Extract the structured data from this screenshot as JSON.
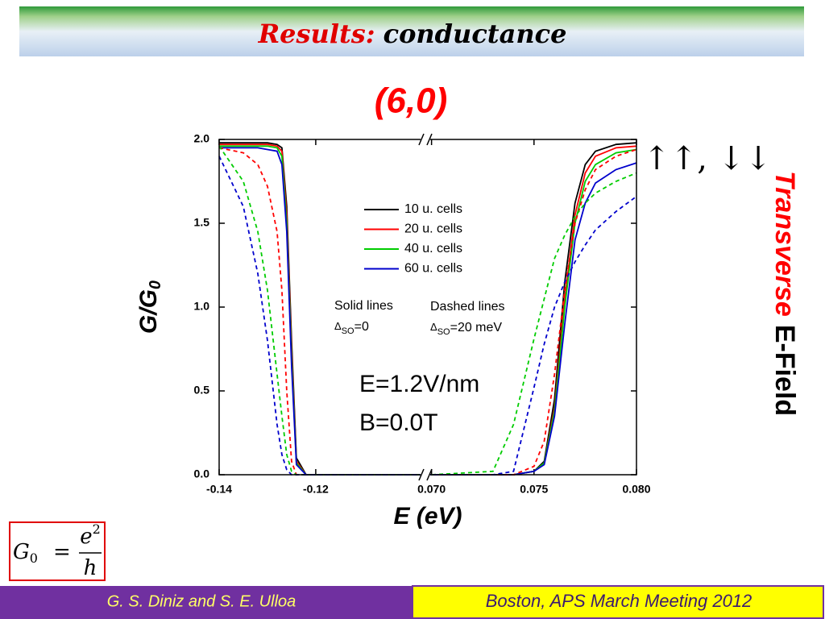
{
  "header": {
    "title_part1": "Results:",
    "title_part2": "conductance"
  },
  "subtitle": "(6,0)",
  "side": {
    "arrows": "↑↑, ↓↓",
    "word1": "Transverse",
    "word2": "E-Field"
  },
  "formula": {
    "lhs": "G",
    "lhs_sub": "0",
    "eq": "=",
    "num": "e",
    "num_sup": "2",
    "den": "h"
  },
  "footer": {
    "authors": "G. S. Diniz and S. E. Ulloa",
    "venue": "Boston, APS March Meeting 2012"
  },
  "chart_data": {
    "type": "line",
    "xlabel": "E (eV)",
    "ylabel": "G/G",
    "ylabel_sub": "0",
    "xlim": [
      -0.14,
      0.08
    ],
    "xbreak": [
      -0.0973,
      0.0697
    ],
    "xticks": [
      -0.14,
      -0.12,
      {
        "value": 0.07,
        "label": "0.070"
      },
      {
        "value": 0.075,
        "label": "0.075"
      },
      {
        "value": 0.08,
        "label": "0.080"
      }
    ],
    "ylim": [
      0,
      2.0
    ],
    "yticks": [
      {
        "value": 0,
        "label": "0.0"
      },
      0.5,
      {
        "value": 1,
        "label": "1.0"
      },
      1.5,
      {
        "value": 2,
        "label": "2.0"
      }
    ],
    "x": [
      -0.14,
      -0.135,
      -0.132,
      -0.13,
      -0.128,
      -0.127,
      -0.126,
      -0.125,
      -0.124,
      -0.122,
      -0.098,
      0.07,
      0.073,
      0.074,
      0.075,
      0.0755,
      0.076,
      0.0765,
      0.077,
      0.0775,
      0.078,
      0.079,
      0.08
    ],
    "series": [
      {
        "name": "10 u. cells",
        "color": "#000000",
        "dash": false,
        "values": [
          1.98,
          1.98,
          1.98,
          1.98,
          1.97,
          1.95,
          1.6,
          0.8,
          0.1,
          0,
          0,
          0,
          0,
          0,
          0.02,
          0.08,
          0.45,
          1.15,
          1.62,
          1.85,
          1.93,
          1.97,
          1.98
        ]
      },
      {
        "name": "20 u. cells",
        "color": "#ff0000",
        "dash": false,
        "values": [
          1.97,
          1.97,
          1.97,
          1.97,
          1.96,
          1.93,
          1.55,
          0.75,
          0.08,
          0,
          0,
          0,
          0,
          0,
          0.02,
          0.07,
          0.4,
          1.05,
          1.55,
          1.8,
          1.9,
          1.95,
          1.96
        ]
      },
      {
        "name": "40 u. cells",
        "color": "#00cc00",
        "dash": false,
        "values": [
          1.96,
          1.96,
          1.96,
          1.96,
          1.95,
          1.9,
          1.5,
          0.7,
          0.07,
          0,
          0,
          0,
          0,
          0,
          0.02,
          0.07,
          0.38,
          1.0,
          1.5,
          1.75,
          1.85,
          1.92,
          1.94
        ]
      },
      {
        "name": "60 u. cells",
        "color": "#0000cc",
        "dash": false,
        "values": [
          1.95,
          1.95,
          1.95,
          1.94,
          1.93,
          1.85,
          1.45,
          0.65,
          0.06,
          0,
          0,
          0,
          0,
          0,
          0.02,
          0.06,
          0.35,
          0.9,
          1.4,
          1.62,
          1.74,
          1.82,
          1.86
        ]
      },
      {
        "color": "#ff0000",
        "dash": true,
        "values": [
          1.95,
          1.92,
          1.85,
          1.72,
          1.45,
          1.1,
          0.5,
          0.08,
          0,
          0,
          0,
          0,
          0,
          0,
          0.05,
          0.2,
          0.6,
          1.1,
          1.5,
          1.7,
          1.82,
          1.9,
          1.94
        ]
      },
      {
        "color": "#00cc00",
        "dash": true,
        "values": [
          1.96,
          1.75,
          1.45,
          1.1,
          0.6,
          0.35,
          0.12,
          0.02,
          0,
          0,
          0,
          0,
          0.02,
          0.3,
          0.81,
          1.05,
          1.29,
          1.43,
          1.54,
          1.62,
          1.68,
          1.75,
          1.8
        ]
      },
      {
        "color": "#0000cc",
        "dash": true,
        "values": [
          1.9,
          1.6,
          1.2,
          0.8,
          0.3,
          0.12,
          0.03,
          0,
          0,
          0,
          0,
          0,
          0,
          0.02,
          0.52,
          0.78,
          1.0,
          1.15,
          1.27,
          1.37,
          1.46,
          1.57,
          1.66
        ]
      }
    ],
    "notes": {
      "solid": "Solid lines",
      "solid_delta": "Δ",
      "solid_sub": "SO",
      "solid_val": "=0",
      "dashed": "Dashed lines",
      "dashed_delta": "Δ",
      "dashed_sub": "SO",
      "dashed_val": "=20 meV",
      "field": "E=1.2V/nm",
      "bfield": "B=0.0T"
    }
  }
}
